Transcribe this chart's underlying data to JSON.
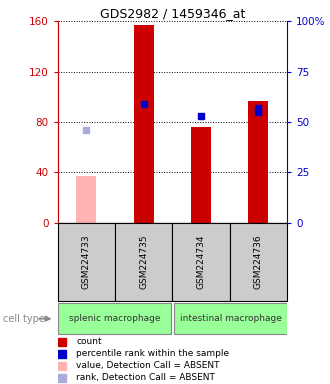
{
  "title": "GDS2982 / 1459346_at",
  "samples": [
    "GSM224733",
    "GSM224735",
    "GSM224734",
    "GSM224736"
  ],
  "group_labels": [
    "splenic macrophage",
    "intestinal macrophage"
  ],
  "group_sample_ranges": [
    [
      0,
      1
    ],
    [
      2,
      3
    ]
  ],
  "bar_values": [
    37,
    157,
    76,
    97
  ],
  "bar_colors": [
    "#ffb3b3",
    "#cc0000",
    "#cc0000",
    "#cc0000"
  ],
  "percentile_values": [
    null,
    59,
    53,
    57
  ],
  "percentile_color": "#0000cc",
  "absent_rank_values": [
    46,
    null,
    null,
    null
  ],
  "absent_rank_color": "#aaaadd",
  "extra_blue_value": 55,
  "extra_blue_idx": 3,
  "ylim_left": [
    0,
    160
  ],
  "ylim_right": [
    0,
    100
  ],
  "yticks_left": [
    0,
    40,
    80,
    120,
    160
  ],
  "ytick_labels_left": [
    "0",
    "40",
    "80",
    "120",
    "160"
  ],
  "yticks_right": [
    0,
    25,
    50,
    75,
    100
  ],
  "ytick_labels_right": [
    "0",
    "25",
    "50",
    "75",
    "100%"
  ],
  "left_axis_color": "#cc0000",
  "right_axis_color": "#0000cc",
  "sample_box_color": "#cccccc",
  "group_box_color": "#99ff99",
  "bar_width": 0.35,
  "legend_items": [
    {
      "color": "#cc0000",
      "label": "count"
    },
    {
      "color": "#0000cc",
      "label": "percentile rank within the sample"
    },
    {
      "color": "#ffb3b3",
      "label": "value, Detection Call = ABSENT"
    },
    {
      "color": "#aaaadd",
      "label": "rank, Detection Call = ABSENT"
    }
  ]
}
